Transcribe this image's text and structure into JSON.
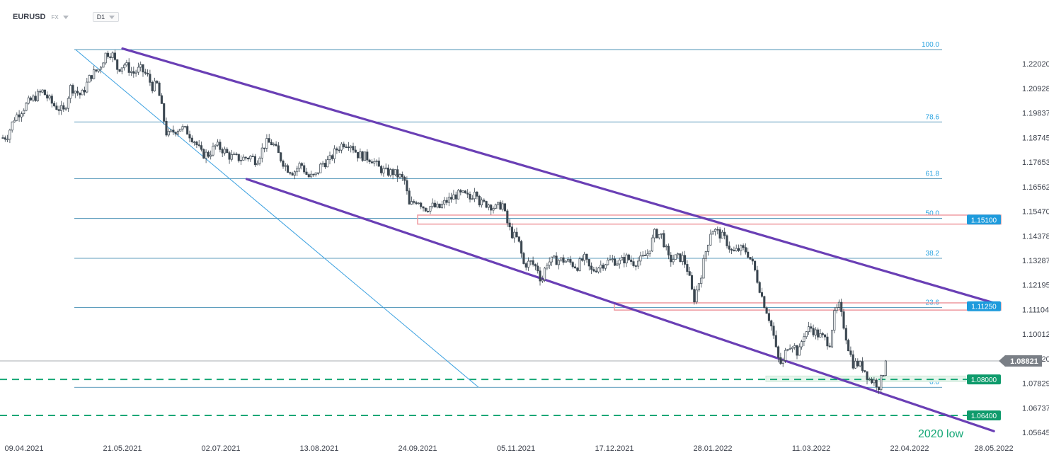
{
  "header": {
    "symbol": "EURUSD",
    "market": "FX",
    "timeframe": "D1"
  },
  "chart_data": {
    "type": "candlestick",
    "x_axis": {
      "tick_labels": [
        "09.04.2021",
        "21.05.2021",
        "02.07.2021",
        "13.08.2021",
        "24.09.2021",
        "05.11.2021",
        "17.12.2021",
        "28.01.2022",
        "11.03.2022",
        "22.04.2022",
        "28.05.2022"
      ]
    },
    "y_axis": {
      "tick_labels": [
        "1.22020",
        "1.20928",
        "1.19837",
        "1.18745",
        "1.17653",
        "1.16562",
        "1.15470",
        "1.14378",
        "1.13287",
        "1.12195",
        "1.11104",
        "1.10012",
        "1.08920",
        "1.07829",
        "1.06737",
        "1.05645"
      ],
      "range": [
        1.0555,
        1.2305
      ]
    },
    "fibonacci": {
      "high": 1.2265,
      "low": 1.0765,
      "levels": [
        {
          "label": "100.0",
          "value": 1.2265
        },
        {
          "label": "78.6",
          "value": 1.1944
        },
        {
          "label": "61.8",
          "value": 1.1692
        },
        {
          "label": "50.0",
          "value": 1.1515
        },
        {
          "label": "38.2",
          "value": 1.1338
        },
        {
          "label": "23.6",
          "value": 1.1119
        },
        {
          "label": "0.0",
          "value": 1.0765
        }
      ]
    },
    "price_tags": [
      {
        "label": "1.15100",
        "value": 1.151,
        "color": "#1e9bdc"
      },
      {
        "label": "1.11250",
        "value": 1.1125,
        "color": "#1e9bdc"
      },
      {
        "label": "1.08000",
        "value": 1.08,
        "color": "#0f9b6c"
      },
      {
        "label": "1.06400",
        "value": 1.064,
        "color": "#0f9b6c"
      }
    ],
    "current_price": {
      "label": "1.08821",
      "value": 1.08821
    },
    "support_zones": [
      {
        "from_date": "24.09.2021",
        "to_date": "28.05.2022",
        "low": 1.149,
        "high": 1.153
      },
      {
        "from_date": "17.12.2021",
        "to_date": "28.05.2022",
        "low": 1.1108,
        "high": 1.114
      }
    ],
    "dashed_levels": [
      1.08,
      1.064
    ],
    "annotations": [
      "2020 low"
    ],
    "trend_channel": [
      {
        "from": [
          "21.05.2021",
          1.227
        ],
        "to": [
          "28.05.2022",
          1.114
        ]
      },
      {
        "from": [
          "13.07.2021",
          1.169
        ],
        "to": [
          "28.05.2022",
          1.057
        ]
      }
    ],
    "steep_trendline": {
      "from": [
        "01.05.2021",
        1.2265
      ],
      "to": [
        "20.10.2021",
        1.0765
      ]
    },
    "series_path": [
      [
        0,
        1.187
      ],
      [
        10,
        1.188
      ],
      [
        20,
        1.196
      ],
      [
        40,
        1.203
      ],
      [
        60,
        1.208
      ],
      [
        75,
        1.202
      ],
      [
        90,
        1.199
      ],
      [
        100,
        1.21
      ],
      [
        115,
        1.206
      ],
      [
        128,
        1.215
      ],
      [
        140,
        1.218
      ],
      [
        150,
        1.225
      ],
      [
        158,
        1.225
      ],
      [
        166,
        1.218
      ],
      [
        176,
        1.22
      ],
      [
        188,
        1.216
      ],
      [
        198,
        1.218
      ],
      [
        208,
        1.215
      ],
      [
        215,
        1.21
      ],
      [
        222,
        1.211
      ],
      [
        230,
        1.198
      ],
      [
        236,
        1.188
      ],
      [
        244,
        1.19
      ],
      [
        255,
        1.192
      ],
      [
        265,
        1.19
      ],
      [
        275,
        1.186
      ],
      [
        285,
        1.18
      ],
      [
        295,
        1.18
      ],
      [
        305,
        1.184
      ],
      [
        315,
        1.182
      ],
      [
        325,
        1.179
      ],
      [
        340,
        1.178
      ],
      [
        355,
        1.179
      ],
      [
        362,
        1.177
      ],
      [
        375,
        1.185
      ],
      [
        385,
        1.185
      ],
      [
        395,
        1.179
      ],
      [
        405,
        1.174
      ],
      [
        415,
        1.172
      ],
      [
        425,
        1.176
      ],
      [
        435,
        1.17
      ],
      [
        445,
        1.17
      ],
      [
        455,
        1.176
      ],
      [
        465,
        1.177
      ],
      [
        475,
        1.182
      ],
      [
        485,
        1.185
      ],
      [
        495,
        1.185
      ],
      [
        505,
        1.18
      ],
      [
        515,
        1.179
      ],
      [
        525,
        1.178
      ],
      [
        535,
        1.174
      ],
      [
        545,
        1.172
      ],
      [
        555,
        1.172
      ],
      [
        565,
        1.17
      ],
      [
        572,
        1.168
      ],
      [
        578,
        1.157
      ],
      [
        590,
        1.16
      ],
      [
        600,
        1.156
      ],
      [
        610,
        1.157
      ],
      [
        620,
        1.156
      ],
      [
        630,
        1.159
      ],
      [
        645,
        1.162
      ],
      [
        655,
        1.162
      ],
      [
        665,
        1.16
      ],
      [
        672,
        1.166
      ],
      [
        678,
        1.158
      ],
      [
        690,
        1.158
      ],
      [
        700,
        1.156
      ],
      [
        710,
        1.158
      ],
      [
        715,
        1.151
      ],
      [
        722,
        1.145
      ],
      [
        732,
        1.142
      ],
      [
        740,
        1.131
      ],
      [
        750,
        1.132
      ],
      [
        760,
        1.129
      ],
      [
        765,
        1.123
      ],
      [
        772,
        1.132
      ],
      [
        785,
        1.133
      ],
      [
        795,
        1.133
      ],
      [
        805,
        1.132
      ],
      [
        815,
        1.13
      ],
      [
        825,
        1.134
      ],
      [
        835,
        1.128
      ],
      [
        845,
        1.13
      ],
      [
        855,
        1.132
      ],
      [
        865,
        1.133
      ],
      [
        875,
        1.132
      ],
      [
        885,
        1.134
      ],
      [
        895,
        1.132
      ],
      [
        905,
        1.133
      ],
      [
        915,
        1.136
      ],
      [
        925,
        1.145
      ],
      [
        935,
        1.144
      ],
      [
        945,
        1.133
      ],
      [
        955,
        1.134
      ],
      [
        965,
        1.134
      ],
      [
        972,
        1.128
      ],
      [
        980,
        1.115
      ],
      [
        990,
        1.126
      ],
      [
        998,
        1.138
      ],
      [
        1005,
        1.147
      ],
      [
        1015,
        1.145
      ],
      [
        1025,
        1.142
      ],
      [
        1035,
        1.136
      ],
      [
        1045,
        1.138
      ],
      [
        1055,
        1.137
      ],
      [
        1065,
        1.13
      ],
      [
        1072,
        1.122
      ],
      [
        1078,
        1.115
      ],
      [
        1085,
        1.109
      ],
      [
        1092,
        1.101
      ],
      [
        1098,
        1.09
      ],
      [
        1105,
        1.086
      ],
      [
        1112,
        1.095
      ],
      [
        1120,
        1.096
      ],
      [
        1128,
        1.091
      ],
      [
        1135,
        1.1
      ],
      [
        1145,
        1.103
      ],
      [
        1155,
        1.1
      ],
      [
        1165,
        1.098
      ],
      [
        1172,
        1.096
      ],
      [
        1178,
        1.108
      ],
      [
        1185,
        1.113
      ],
      [
        1192,
        1.104
      ],
      [
        1198,
        1.095
      ],
      [
        1205,
        1.087
      ],
      [
        1212,
        1.087
      ],
      [
        1220,
        1.085
      ],
      [
        1228,
        1.08
      ],
      [
        1236,
        1.079
      ],
      [
        1242,
        1.077
      ],
      [
        1248,
        1.083
      ],
      [
        1256,
        1.0882
      ]
    ]
  }
}
